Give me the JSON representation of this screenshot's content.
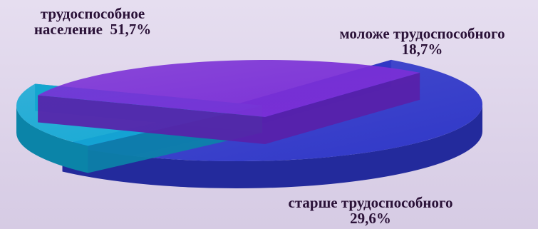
{
  "chart_data": {
    "type": "pie",
    "style": "3d-exploded",
    "slices": [
      {
        "label_line1": "трудоспособное",
        "label_line2": "население",
        "value_text": "51,7%",
        "value": 51.7,
        "color": "#2f37c8",
        "side_color": "#232a9c"
      },
      {
        "label_line1": "моложе трудоспособного",
        "value_text": "18,7%",
        "value": 18.7,
        "color": "#12a9d4",
        "side_color": "#0b84a8"
      },
      {
        "label_line1": "старше трудоспособного",
        "value_text": "29,6%",
        "value": 29.6,
        "color": "#7a2fd6",
        "side_color": "#5a1fa8"
      }
    ]
  }
}
